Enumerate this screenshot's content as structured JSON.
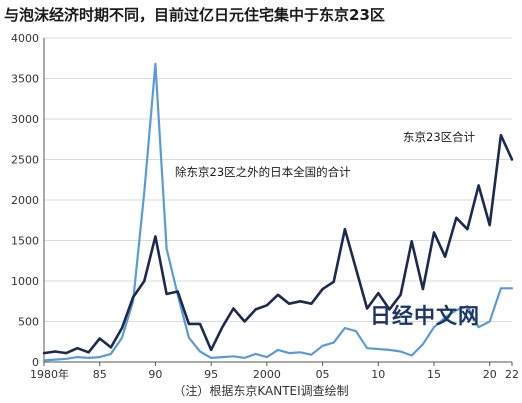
{
  "chart_data": {
    "type": "line",
    "title": "与泡沫经济时期不同，目前过亿日元住宅集中于东京23区",
    "x_tick_labels": [
      "1980年",
      "85",
      "90",
      "95",
      "2000",
      "05",
      "10",
      "15",
      "20",
      "22"
    ],
    "y_tick_labels": [
      "0",
      "500",
      "1000",
      "1500",
      "2000",
      "2500",
      "3000",
      "3500",
      "4000"
    ],
    "ylim": [
      0,
      4000
    ],
    "xlim": [
      1980,
      2022
    ],
    "grid": true,
    "x": [
      1980,
      1981,
      1982,
      1983,
      1984,
      1985,
      1986,
      1987,
      1988,
      1989,
      1990,
      1991,
      1992,
      1993,
      1994,
      1995,
      1996,
      1997,
      1998,
      1999,
      2000,
      2001,
      2002,
      2003,
      2004,
      2005,
      2006,
      2007,
      2008,
      2009,
      2010,
      2011,
      2012,
      2013,
      2014,
      2015,
      2016,
      2017,
      2018,
      2019,
      2020,
      2021,
      2022
    ],
    "series": [
      {
        "name": "东京23区合计",
        "color": "#1b2a4e",
        "values": [
          110,
          130,
          110,
          170,
          120,
          290,
          180,
          420,
          800,
          1000,
          1550,
          840,
          870,
          470,
          470,
          150,
          430,
          660,
          500,
          650,
          700,
          830,
          720,
          750,
          720,
          900,
          990,
          1640,
          1150,
          660,
          850,
          650,
          830,
          1490,
          900,
          1600,
          1300,
          1780,
          1640,
          2180,
          1690,
          2800,
          2500
        ]
      },
      {
        "name": "除东京23区之外的日本全国的合计",
        "color": "#5b9bd5",
        "values": [
          20,
          30,
          40,
          60,
          50,
          60,
          100,
          300,
          750,
          2100,
          3680,
          1400,
          830,
          300,
          130,
          50,
          60,
          70,
          50,
          100,
          60,
          150,
          110,
          120,
          90,
          200,
          240,
          420,
          380,
          170,
          160,
          150,
          130,
          80,
          220,
          430,
          550,
          640,
          690,
          430,
          500,
          910,
          910
        ]
      }
    ]
  },
  "watermark": "日经中文网",
  "note": "（注）根据东京KANTEI调查绘制"
}
